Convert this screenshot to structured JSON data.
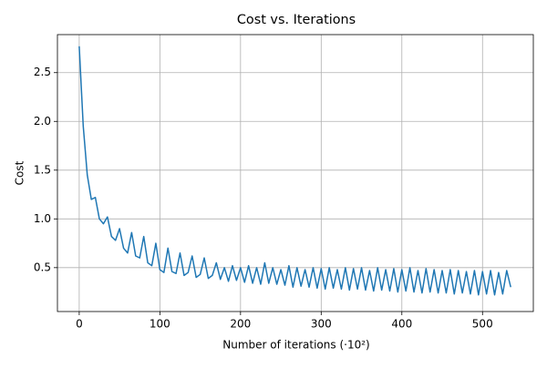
{
  "chart_data": {
    "type": "line",
    "title": "Cost vs. Iterations",
    "x_label": "Number of iterations (·10²)",
    "y_label": "Cost",
    "x": [
      0,
      5,
      10,
      15,
      20,
      25,
      30,
      35,
      40,
      45,
      50,
      55,
      60,
      65,
      70,
      75,
      80,
      85,
      90,
      95,
      100,
      105,
      110,
      115,
      120,
      125,
      130,
      135,
      140,
      145,
      150,
      155,
      160,
      165,
      170,
      175,
      180,
      185,
      190,
      195,
      200,
      205,
      210,
      215,
      220,
      225,
      230,
      235,
      240,
      245,
      250,
      255,
      260,
      265,
      270,
      275,
      280,
      285,
      290,
      295,
      300,
      305,
      310,
      315,
      320,
      325,
      330,
      335,
      340,
      345,
      350,
      355,
      360,
      365,
      370,
      375,
      380,
      385,
      390,
      395,
      400,
      405,
      410,
      415,
      420,
      425,
      430,
      435,
      440,
      445,
      450,
      455,
      460,
      465,
      470,
      475,
      480,
      485,
      490,
      495,
      500,
      505,
      510,
      515,
      520,
      525,
      530,
      535
    ],
    "series": [
      {
        "name": "Cost",
        "color": "#1f77b4",
        "values": [
          2.77,
          1.95,
          1.45,
          1.2,
          1.22,
          1.0,
          0.95,
          1.02,
          0.82,
          0.78,
          0.9,
          0.7,
          0.65,
          0.86,
          0.62,
          0.6,
          0.82,
          0.55,
          0.52,
          0.75,
          0.48,
          0.45,
          0.7,
          0.46,
          0.44,
          0.65,
          0.42,
          0.45,
          0.62,
          0.4,
          0.43,
          0.6,
          0.39,
          0.42,
          0.55,
          0.38,
          0.5,
          0.36,
          0.52,
          0.37,
          0.5,
          0.35,
          0.52,
          0.34,
          0.5,
          0.33,
          0.55,
          0.34,
          0.5,
          0.33,
          0.48,
          0.32,
          0.52,
          0.3,
          0.5,
          0.31,
          0.48,
          0.3,
          0.5,
          0.29,
          0.49,
          0.28,
          0.5,
          0.29,
          0.48,
          0.28,
          0.5,
          0.27,
          0.49,
          0.28,
          0.5,
          0.27,
          0.47,
          0.26,
          0.5,
          0.27,
          0.48,
          0.26,
          0.49,
          0.25,
          0.48,
          0.26,
          0.5,
          0.25,
          0.47,
          0.24,
          0.49,
          0.25,
          0.48,
          0.24,
          0.47,
          0.24,
          0.48,
          0.23,
          0.47,
          0.24,
          0.46,
          0.23,
          0.47,
          0.22,
          0.46,
          0.23,
          0.47,
          0.22,
          0.45,
          0.23,
          0.47,
          0.3
        ]
      }
    ],
    "xlim": [
      -27,
      563
    ],
    "ylim": [
      0.05,
      2.89
    ],
    "xticks": [
      0,
      100,
      200,
      300,
      400,
      500
    ],
    "yticks": [
      0.5,
      {
        "value": 1,
        "label": "1.0"
      },
      1.5,
      {
        "value": 2,
        "label": "2.0"
      },
      2.5
    ],
    "grid": true
  }
}
